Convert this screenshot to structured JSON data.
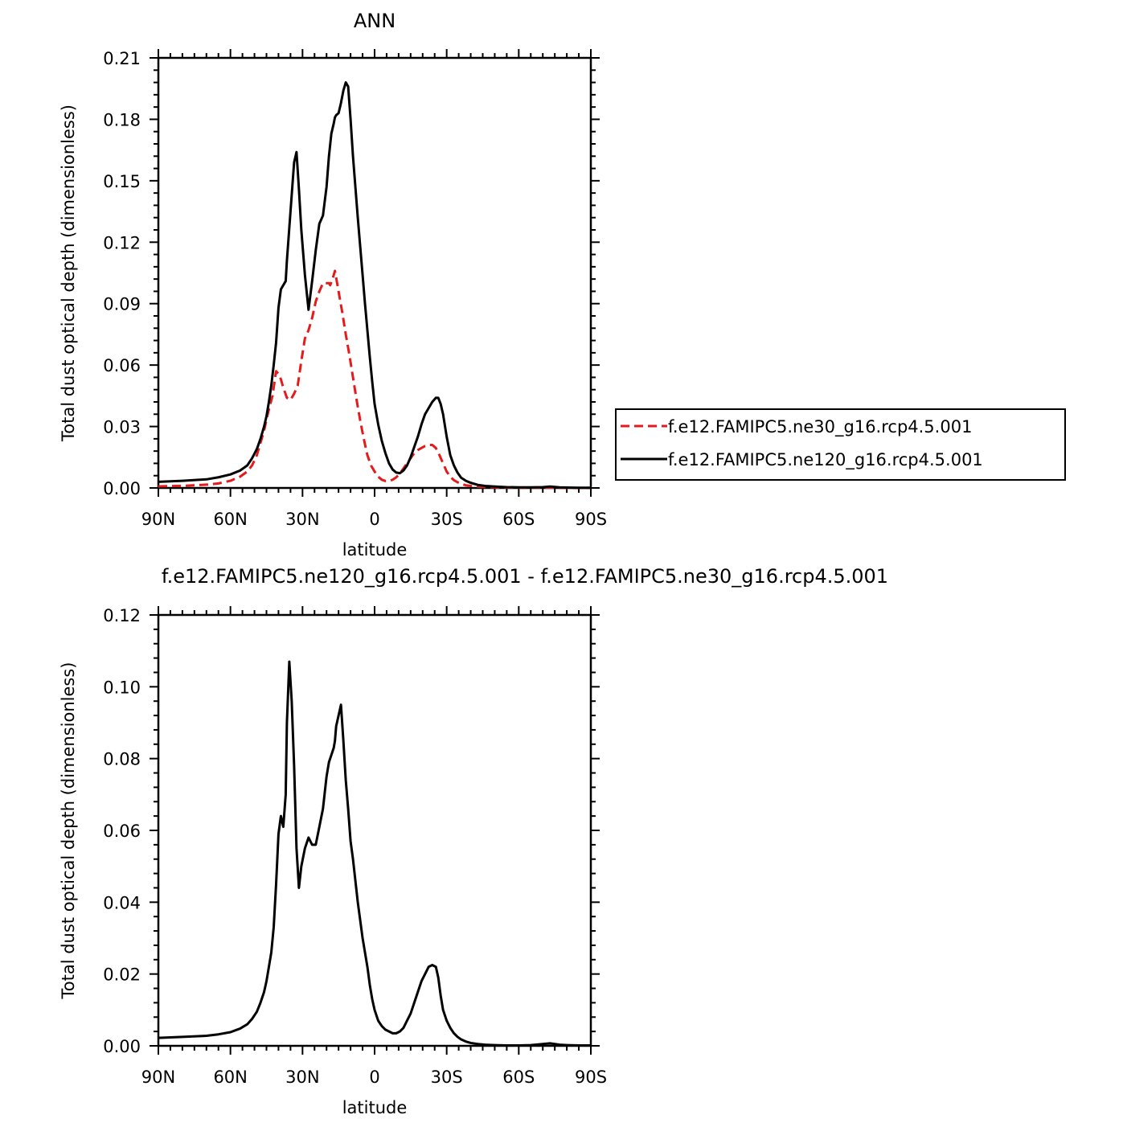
{
  "chart_data": [
    {
      "type": "line",
      "title": "ANN",
      "xlabel": "latitude",
      "ylabel": "Total dust optical depth (dimensionless)",
      "xlim": [
        90,
        -90
      ],
      "ylim": [
        0,
        0.21
      ],
      "xticks": [
        {
          "value": 90,
          "label": "90N"
        },
        {
          "value": 60,
          "label": "60N"
        },
        {
          "value": 30,
          "label": "30N"
        },
        {
          "value": 0,
          "label": "0"
        },
        {
          "value": -30,
          "label": "30S"
        },
        {
          "value": -60,
          "label": "60S"
        },
        {
          "value": -90,
          "label": "90S"
        }
      ],
      "yticks": [
        {
          "value": 0,
          "label": "0.00"
        },
        {
          "value": 0.03,
          "label": "0.03"
        },
        {
          "value": 0.06,
          "label": "0.06"
        },
        {
          "value": 0.09,
          "label": "0.09"
        },
        {
          "value": 0.12,
          "label": "0.12"
        },
        {
          "value": 0.15,
          "label": "0.15"
        },
        {
          "value": 0.18,
          "label": "0.18"
        },
        {
          "value": 0.21,
          "label": "0.21"
        }
      ],
      "legend": "right",
      "series": [
        {
          "name": "f.e12.FAMIPC5.ne30_g16.rcp4.5.001",
          "color": "#e41a1c",
          "style": "dashed",
          "x": [
            90,
            80,
            70,
            65,
            60,
            56,
            53,
            51,
            49,
            47.5,
            46,
            44.5,
            42.5,
            41,
            39.5,
            38,
            36.5,
            35,
            33.5,
            32,
            30.5,
            29,
            27.5,
            26,
            24.5,
            23,
            21.5,
            20,
            19,
            18.5,
            17.5,
            16.5,
            15,
            13.5,
            12,
            10.5,
            9,
            7.5,
            6,
            4.5,
            3,
            1.5,
            0,
            -1.5,
            -3,
            -4.5,
            -6,
            -7.5,
            -9,
            -10.5,
            -12,
            -13.5,
            -15,
            -16.5,
            -18,
            -19.5,
            -21,
            -22.5,
            -24,
            -25.5,
            -27,
            -28.5,
            -30,
            -31.5,
            -33,
            -34.5,
            -36,
            -38,
            -40,
            -43,
            -46,
            -50,
            -55,
            -60,
            -65,
            -70,
            -75,
            -80,
            -85,
            -90
          ],
          "y": [
            0.0008,
            0.001,
            0.0016,
            0.0022,
            0.0035,
            0.0055,
            0.008,
            0.011,
            0.016,
            0.022,
            0.028,
            0.036,
            0.045,
            0.057,
            0.055,
            0.049,
            0.044,
            0.043,
            0.046,
            0.05,
            0.062,
            0.073,
            0.077,
            0.083,
            0.091,
            0.096,
            0.1,
            0.1,
            0.1,
            0.099,
            0.102,
            0.106,
            0.096,
            0.086,
            0.075,
            0.065,
            0.054,
            0.043,
            0.033,
            0.024,
            0.016,
            0.011,
            0.008,
            0.0055,
            0.004,
            0.0034,
            0.0034,
            0.004,
            0.0052,
            0.007,
            0.0095,
            0.012,
            0.0145,
            0.017,
            0.0185,
            0.0195,
            0.0205,
            0.021,
            0.021,
            0.0195,
            0.016,
            0.012,
            0.008,
            0.0055,
            0.0038,
            0.0028,
            0.002,
            0.0013,
            0.001,
            0.0007,
            0.0005,
            0.0003,
            0.0002,
            0.0001,
            0.0001,
            0.0001,
            0.0001,
            0.0,
            0.0,
            0.0
          ]
        },
        {
          "name": "f.e12.FAMIPC5.ne120_g16.rcp4.5.001",
          "color": "#000000",
          "style": "solid",
          "x": [
            90,
            80,
            70,
            65,
            60,
            56,
            53,
            51,
            49,
            47.5,
            46,
            45,
            44,
            43,
            42,
            41,
            40,
            39,
            38,
            37,
            36.5,
            35.5,
            34.5,
            33.5,
            32.5,
            31.5,
            30.5,
            29,
            27.5,
            26,
            24.5,
            23,
            21.5,
            20,
            19,
            18,
            17,
            16.5,
            16,
            15,
            14,
            13,
            12,
            11,
            10,
            9,
            8,
            7,
            6,
            5,
            4,
            3,
            2,
            1,
            0,
            -1.5,
            -3,
            -4.5,
            -6,
            -7.5,
            -9,
            -10.5,
            -12,
            -13.5,
            -15,
            -16.5,
            -18,
            -19.5,
            -21,
            -22.5,
            -24,
            -25.5,
            -26.5,
            -27.5,
            -28.5,
            -30,
            -31.5,
            -33,
            -34.5,
            -36,
            -38,
            -40,
            -43,
            -46,
            -50,
            -55,
            -60,
            -65,
            -70,
            -73,
            -75,
            -77,
            -80,
            -85,
            -90
          ],
          "y": [
            0.003,
            0.0035,
            0.0042,
            0.0052,
            0.0066,
            0.0085,
            0.011,
            0.0145,
            0.019,
            0.024,
            0.03,
            0.035,
            0.042,
            0.05,
            0.06,
            0.071,
            0.088,
            0.097,
            0.099,
            0.101,
            0.111,
            0.127,
            0.143,
            0.159,
            0.164,
            0.146,
            0.126,
            0.104,
            0.087,
            0.101,
            0.116,
            0.129,
            0.133,
            0.147,
            0.162,
            0.173,
            0.178,
            0.181,
            0.182,
            0.183,
            0.188,
            0.194,
            0.198,
            0.196,
            0.18,
            0.162,
            0.147,
            0.132,
            0.118,
            0.104,
            0.09,
            0.077,
            0.064,
            0.052,
            0.041,
            0.031,
            0.023,
            0.017,
            0.012,
            0.009,
            0.0075,
            0.0072,
            0.0085,
            0.011,
            0.015,
            0.02,
            0.025,
            0.031,
            0.036,
            0.039,
            0.042,
            0.044,
            0.044,
            0.041,
            0.036,
            0.025,
            0.016,
            0.011,
            0.0075,
            0.005,
            0.0035,
            0.0025,
            0.0015,
            0.001,
            0.0007,
            0.0004,
            0.0003,
            0.0003,
            0.0004,
            0.0007,
            0.0005,
            0.0003,
            0.0002,
            0.0001,
            0.0001
          ]
        }
      ]
    },
    {
      "type": "line",
      "title": "f.e12.FAMIPC5.ne120_g16.rcp4.5.001 - f.e12.FAMIPC5.ne30_g16.rcp4.5.001",
      "xlabel": "latitude",
      "ylabel": "Total dust optical depth (dimensionless)",
      "xlim": [
        90,
        -90
      ],
      "ylim": [
        0,
        0.12
      ],
      "xticks": [
        {
          "value": 90,
          "label": "90N"
        },
        {
          "value": 60,
          "label": "60N"
        },
        {
          "value": 30,
          "label": "30N"
        },
        {
          "value": 0,
          "label": "0"
        },
        {
          "value": -30,
          "label": "30S"
        },
        {
          "value": -60,
          "label": "60S"
        },
        {
          "value": -90,
          "label": "90S"
        }
      ],
      "yticks": [
        {
          "value": 0,
          "label": "0.00"
        },
        {
          "value": 0.02,
          "label": "0.02"
        },
        {
          "value": 0.04,
          "label": "0.04"
        },
        {
          "value": 0.06,
          "label": "0.06"
        },
        {
          "value": 0.08,
          "label": "0.08"
        },
        {
          "value": 0.1,
          "label": "0.10"
        },
        {
          "value": 0.12,
          "label": "0.12"
        }
      ],
      "series": [
        {
          "color": "#000000",
          "style": "solid",
          "x": [
            90,
            80,
            70,
            65,
            60,
            56,
            53,
            51,
            49,
            47.5,
            46,
            45,
            44,
            43,
            42,
            41,
            40,
            39,
            38,
            37,
            36.5,
            35.5,
            34.5,
            33.5,
            32.5,
            31.5,
            30.5,
            29,
            27.5,
            26,
            24.5,
            23,
            21.5,
            20,
            19,
            18,
            17,
            16.5,
            16,
            15,
            14,
            13,
            12,
            11,
            10,
            9,
            8,
            7,
            6,
            5,
            4,
            3,
            2,
            1,
            0,
            -1.5,
            -3,
            -4.5,
            -6,
            -7.5,
            -9,
            -10.5,
            -12,
            -13.5,
            -15,
            -16.5,
            -18,
            -19.5,
            -21,
            -22.5,
            -24,
            -25.5,
            -26.5,
            -27.5,
            -28.5,
            -30,
            -31.5,
            -33,
            -34.5,
            -36,
            -38,
            -40,
            -43,
            -46,
            -50,
            -55,
            -60,
            -65,
            -70,
            -73,
            -75,
            -77,
            -80,
            -85,
            -90
          ],
          "y": [
            0.0022,
            0.0025,
            0.0028,
            0.0032,
            0.0038,
            0.0048,
            0.006,
            0.0075,
            0.0095,
            0.012,
            0.015,
            0.018,
            0.022,
            0.026,
            0.033,
            0.045,
            0.059,
            0.064,
            0.061,
            0.07,
            0.09,
            0.107,
            0.096,
            0.078,
            0.055,
            0.044,
            0.05,
            0.055,
            0.058,
            0.056,
            0.056,
            0.061,
            0.066,
            0.075,
            0.079,
            0.081,
            0.083,
            0.085,
            0.089,
            0.092,
            0.095,
            0.085,
            0.074,
            0.066,
            0.057,
            0.052,
            0.046,
            0.04,
            0.035,
            0.03,
            0.026,
            0.022,
            0.017,
            0.013,
            0.01,
            0.007,
            0.0055,
            0.0045,
            0.004,
            0.0035,
            0.0035,
            0.004,
            0.005,
            0.007,
            0.009,
            0.012,
            0.015,
            0.018,
            0.02,
            0.022,
            0.0225,
            0.022,
            0.019,
            0.014,
            0.01,
            0.007,
            0.005,
            0.0035,
            0.0025,
            0.0018,
            0.0012,
            0.0008,
            0.0005,
            0.0003,
            0.0002,
            0.0001,
            0.0001,
            0.0002,
            0.0005,
            0.0007,
            0.0005,
            0.0003,
            0.0002,
            0.0001,
            0.0001
          ]
        }
      ]
    }
  ]
}
